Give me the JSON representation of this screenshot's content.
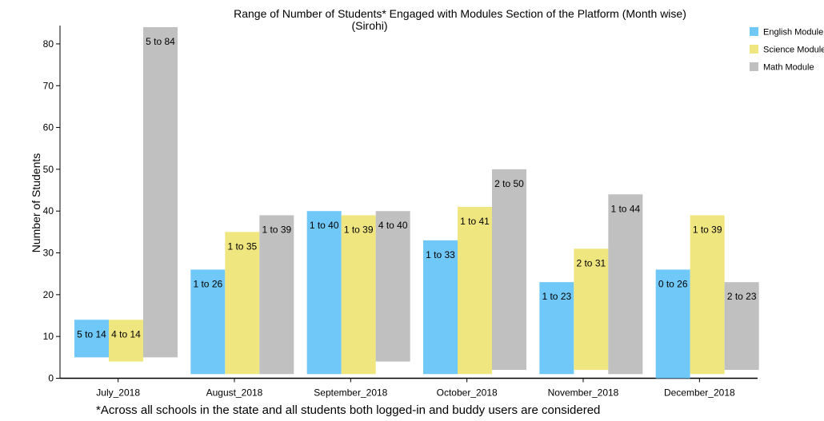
{
  "chart_data": {
    "type": "bar",
    "subtype": "floating-range",
    "title": "Range of Number of Students* Engaged with Modules Section of the Platform (Month wise)",
    "subtitle": "(Sirohi)",
    "xlabel": "",
    "ylabel": "Number of Students",
    "ylim": [
      0,
      84
    ],
    "yticks": [
      0,
      10,
      20,
      30,
      40,
      50,
      60,
      70,
      80
    ],
    "grid": false,
    "legend_position": "top-right",
    "categories": [
      "July_2018",
      "August_2018",
      "September_2018",
      "October_2018",
      "November_2018",
      "December_2018"
    ],
    "series": [
      {
        "name": "English Module",
        "color": "#70c8f8",
        "low": [
          5,
          1,
          1,
          1,
          1,
          0
        ],
        "high": [
          14,
          26,
          40,
          33,
          23,
          26
        ],
        "labels": [
          "5 to 14",
          "1 to 26",
          "1 to 40",
          "1 to 33",
          "1 to 23",
          "0 to 26"
        ]
      },
      {
        "name": "Science Module",
        "color": "#f0e680",
        "low": [
          4,
          1,
          1,
          1,
          2,
          1
        ],
        "high": [
          14,
          35,
          39,
          41,
          31,
          39
        ],
        "labels": [
          "4 to 14",
          "1 to 35",
          "1 to 39",
          "1 to 41",
          "2 to 31",
          "1 to 39"
        ]
      },
      {
        "name": "Math Module",
        "color": "#c0c0c0",
        "low": [
          5,
          1,
          4,
          2,
          1,
          2
        ],
        "high": [
          84,
          39,
          40,
          50,
          44,
          23
        ],
        "labels": [
          "5 to 84",
          "1 to 39",
          "4 to 40",
          "2 to 50",
          "1 to 44",
          "2 to 23"
        ]
      }
    ],
    "footnote": "*Across all schools in the state and all students both logged-in and buddy users are considered"
  }
}
